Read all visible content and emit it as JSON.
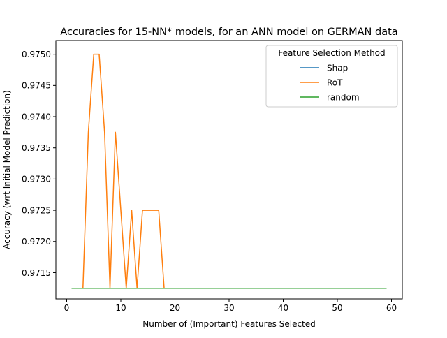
{
  "chart_data": {
    "type": "line",
    "title": "Accuracies for 15-NN* models, for an ANN model on GERMAN data",
    "xlabel": "Number of (Important) Features Selected",
    "ylabel": "Accuracy (wrt Initial Model Prediction)",
    "xlim": [
      -2,
      62
    ],
    "ylim": [
      0.97108,
      0.97522
    ],
    "x_ticks": [
      0,
      10,
      20,
      30,
      40,
      50,
      60
    ],
    "x_tick_labels": [
      "0",
      "10",
      "20",
      "30",
      "40",
      "50",
      "60"
    ],
    "y_ticks": [
      0.9715,
      0.972,
      0.9725,
      0.973,
      0.9735,
      0.974,
      0.9745,
      0.975
    ],
    "y_tick_labels": [
      "0.9715",
      "0.9720",
      "0.9725",
      "0.9730",
      "0.9735",
      "0.9740",
      "0.9745",
      "0.9750"
    ],
    "grid": false,
    "legend": {
      "title": "Feature Selection Method",
      "placement": "top-right"
    },
    "series": [
      {
        "name": "Shap",
        "color": "#1f77b4",
        "x": [
          1,
          59
        ],
        "y": [
          0.97125,
          0.97125
        ]
      },
      {
        "name": "RoT",
        "color": "#ff7f0e",
        "x": [
          1,
          2,
          3,
          4,
          5,
          6,
          7,
          8,
          9,
          10,
          11,
          12,
          13,
          14,
          15,
          16,
          17,
          18,
          59
        ],
        "y": [
          0.97125,
          0.97125,
          0.97125,
          0.97375,
          0.975,
          0.975,
          0.97375,
          0.97125,
          0.97375,
          0.9725,
          0.97125,
          0.9725,
          0.97125,
          0.9725,
          0.9725,
          0.9725,
          0.9725,
          0.97125,
          0.97125
        ]
      },
      {
        "name": "random",
        "color": "#2ca02c",
        "x": [
          1,
          59
        ],
        "y": [
          0.97125,
          0.97125
        ]
      }
    ]
  }
}
